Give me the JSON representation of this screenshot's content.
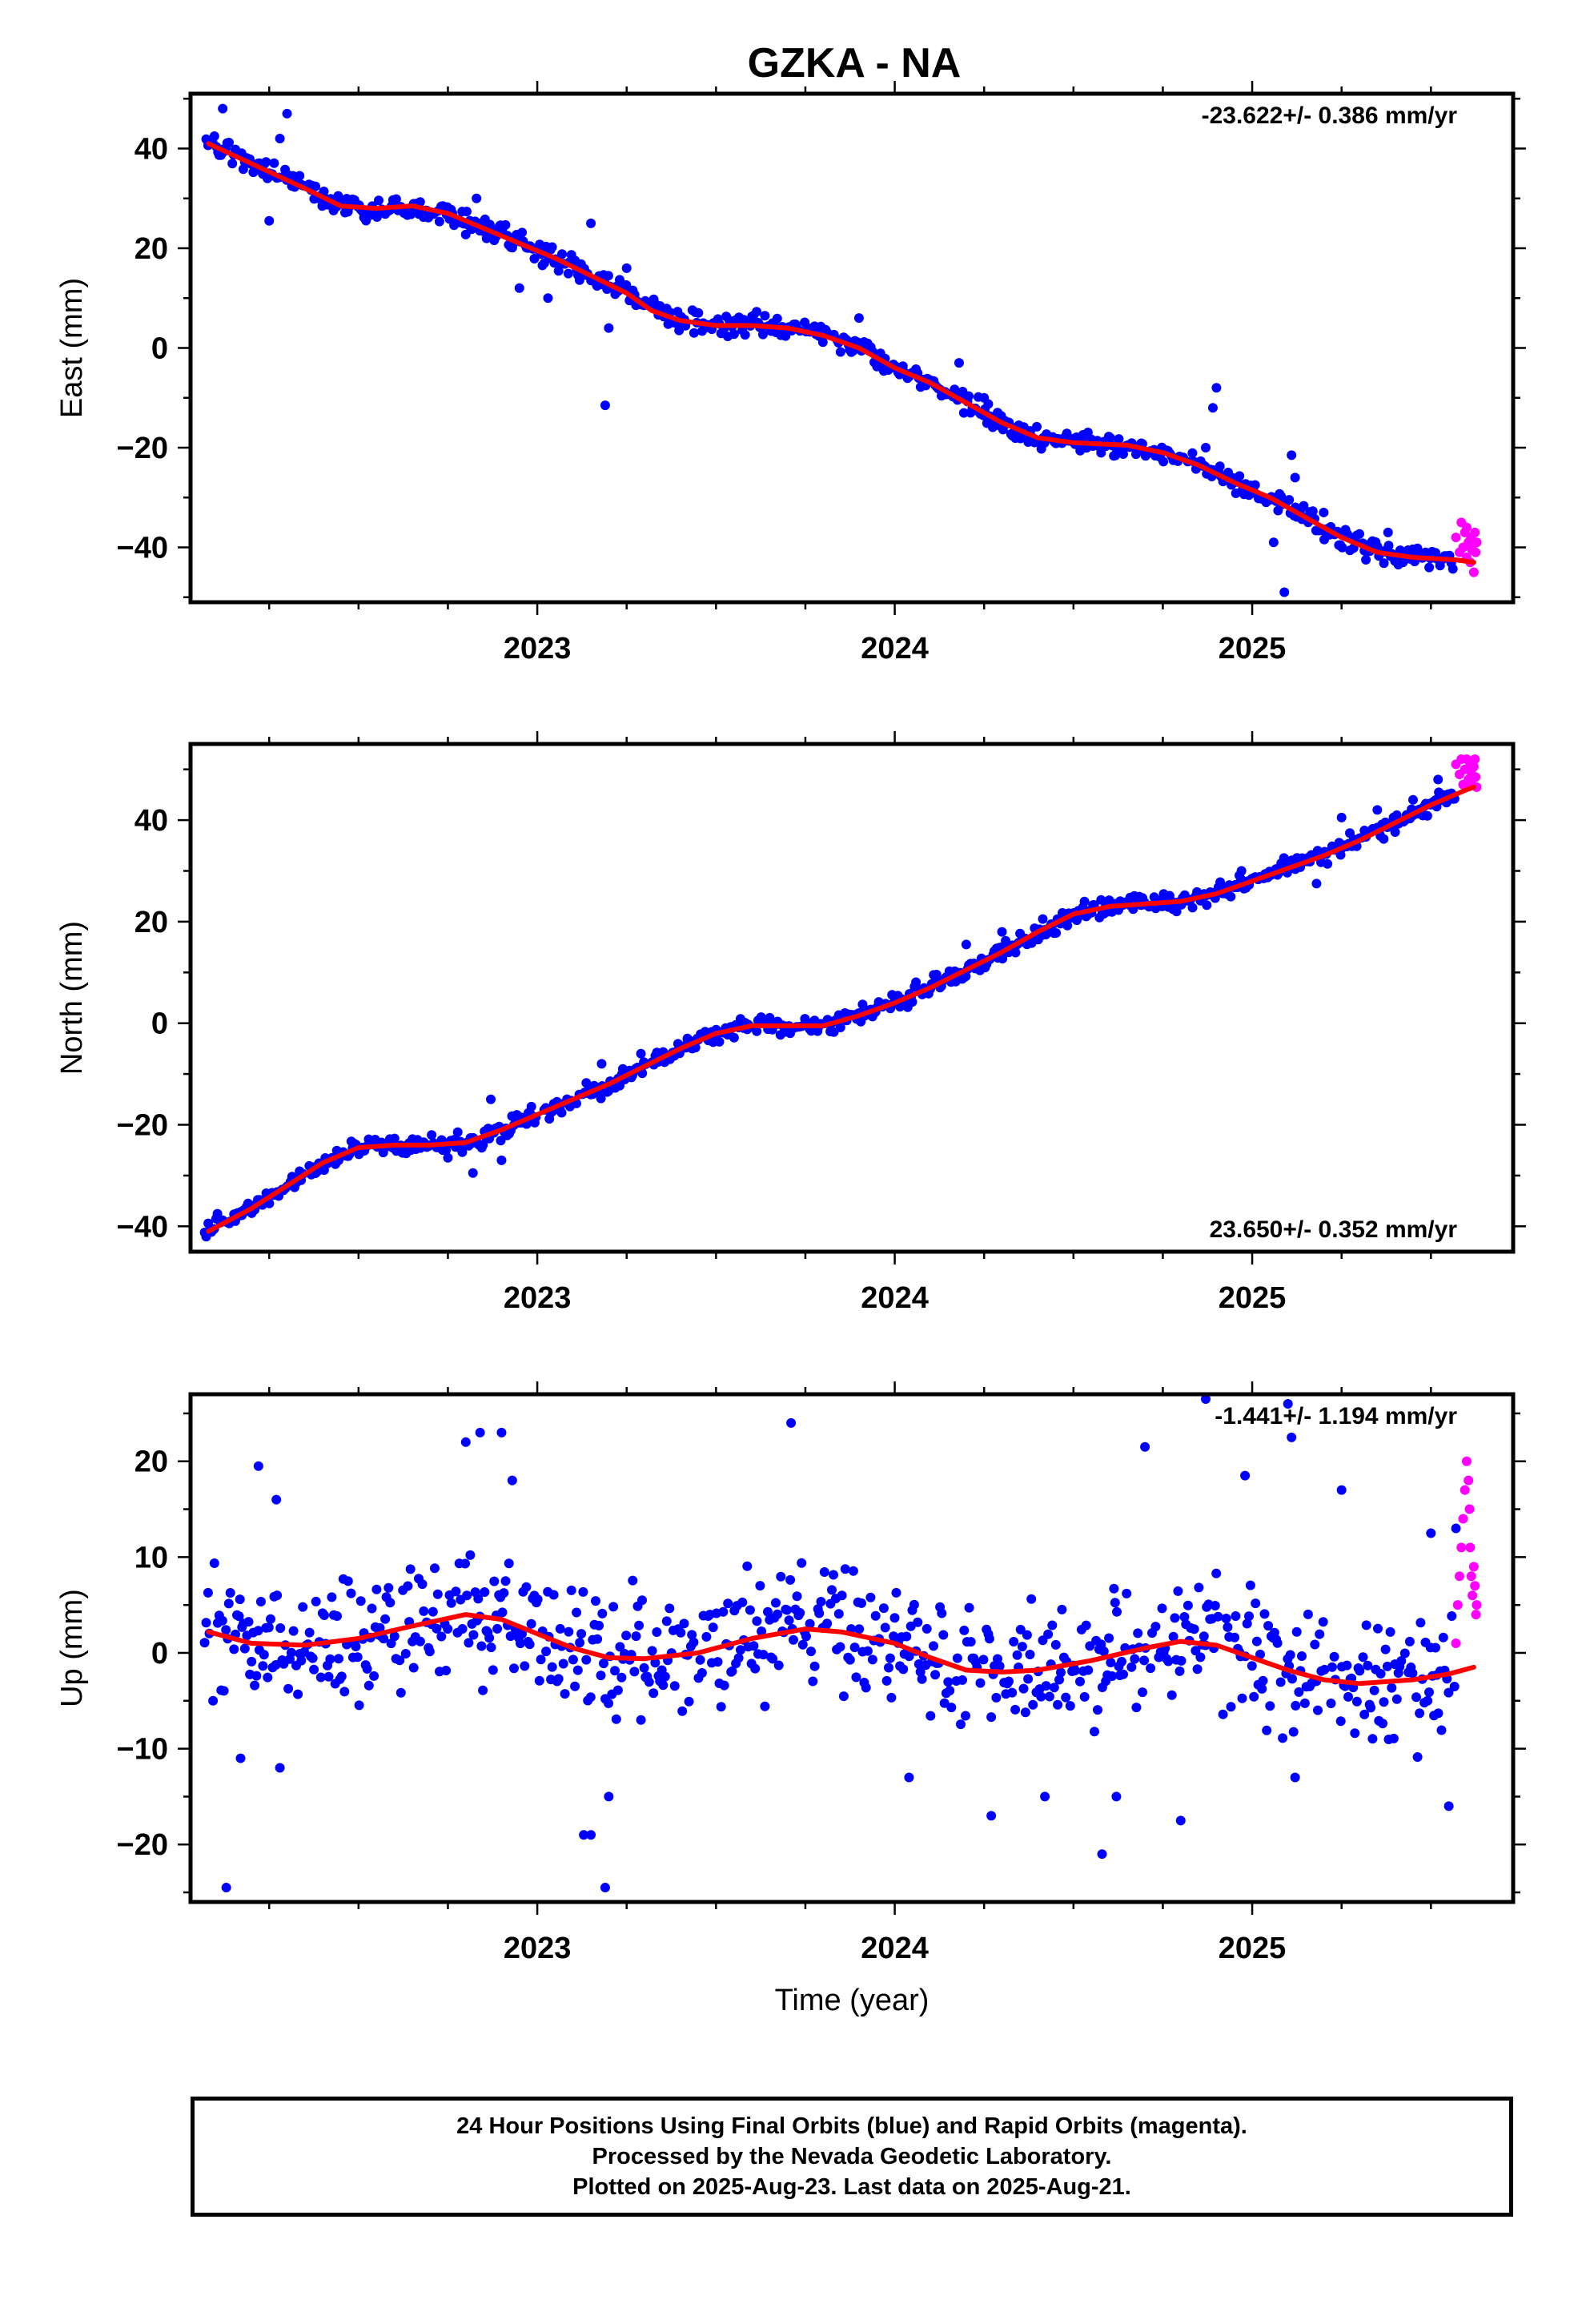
{
  "title": "GZKA - NA",
  "colors": {
    "final": "#0000ff",
    "rapid": "#ff00ff",
    "fit": "#ff0000",
    "frame": "#000000"
  },
  "chart_data": [
    {
      "type": "scatter",
      "ylabel": "East (mm)",
      "xlabel": "",
      "rate_text": "-23.622+/- 0.386 mm/yr",
      "rate_position": "top-right",
      "xlim": [
        2022.03,
        2025.73
      ],
      "ylim": [
        -51,
        51
      ],
      "xticks": [
        2023,
        2024,
        2025
      ],
      "xtick_labels": [
        "2023",
        "2024",
        "2025"
      ],
      "yticks": [
        -40,
        -20,
        0,
        20,
        40
      ],
      "ytick_labels": [
        "−40",
        "−20",
        "0",
        "20",
        "40"
      ],
      "grid": false,
      "series": [
        {
          "role": "final",
          "curve": [
            [
              2022.08,
              41
            ],
            [
              2022.2,
              37
            ],
            [
              2022.35,
              32
            ],
            [
              2022.45,
              28.5
            ],
            [
              2022.55,
              28
            ],
            [
              2022.65,
              28.5
            ],
            [
              2022.75,
              27
            ],
            [
              2022.85,
              24
            ],
            [
              2022.95,
              21
            ],
            [
              2023.05,
              18
            ],
            [
              2023.15,
              14.5
            ],
            [
              2023.25,
              11
            ],
            [
              2023.32,
              7.5
            ],
            [
              2023.4,
              5.5
            ],
            [
              2023.5,
              4.5
            ],
            [
              2023.6,
              4.5
            ],
            [
              2023.7,
              4
            ],
            [
              2023.8,
              2.5
            ],
            [
              2023.9,
              0
            ],
            [
              2024.0,
              -4
            ],
            [
              2024.1,
              -7
            ],
            [
              2024.2,
              -11
            ],
            [
              2024.3,
              -15
            ],
            [
              2024.4,
              -18
            ],
            [
              2024.5,
              -19
            ],
            [
              2024.65,
              -19.5
            ],
            [
              2024.75,
              -21
            ],
            [
              2024.85,
              -23.5
            ],
            [
              2024.95,
              -27
            ],
            [
              2025.05,
              -30
            ],
            [
              2025.15,
              -34
            ],
            [
              2025.25,
              -38
            ],
            [
              2025.35,
              -41
            ],
            [
              2025.45,
              -42
            ],
            [
              2025.57,
              -42.5
            ],
            [
              2025.62,
              -43
            ]
          ],
          "spread": 1.8,
          "step": 0.0045,
          "x_start": 2022.07,
          "x_end": 2025.57,
          "outliers": [
            [
              2022.12,
              48
            ],
            [
              2022.3,
              47
            ],
            [
              2022.28,
              42
            ],
            [
              2022.25,
              25.5
            ],
            [
              2022.83,
              30
            ],
            [
              2022.95,
              12
            ],
            [
              2023.03,
              10
            ],
            [
              2023.15,
              25
            ],
            [
              2023.19,
              -11.5
            ],
            [
              2023.25,
              16
            ],
            [
              2023.2,
              4
            ],
            [
              2023.9,
              6
            ],
            [
              2024.18,
              -3
            ],
            [
              2024.25,
              -10
            ],
            [
              2024.28,
              -14
            ],
            [
              2024.87,
              -20
            ],
            [
              2024.9,
              -8
            ],
            [
              2024.89,
              -12
            ],
            [
              2025.11,
              -21.5
            ],
            [
              2025.06,
              -39
            ],
            [
              2025.12,
              -26
            ],
            [
              2025.2,
              -33
            ],
            [
              2025.38,
              -37
            ],
            [
              2025.09,
              -49
            ]
          ]
        },
        {
          "role": "rapid",
          "points": [
            [
              2025.57,
              -38
            ],
            [
              2025.58,
              -41
            ],
            [
              2025.585,
              -35
            ],
            [
              2025.59,
              -40
            ],
            [
              2025.595,
              -37
            ],
            [
              2025.6,
              -42
            ],
            [
              2025.6,
              -36
            ],
            [
              2025.605,
              -39
            ],
            [
              2025.61,
              -43
            ],
            [
              2025.612,
              -38
            ],
            [
              2025.615,
              -40.5
            ],
            [
              2025.62,
              -45
            ],
            [
              2025.623,
              -37
            ],
            [
              2025.625,
              -41
            ],
            [
              2025.628,
              -39
            ]
          ]
        }
      ]
    },
    {
      "type": "scatter",
      "ylabel": "North (mm)",
      "xlabel": "",
      "rate_text": "23.650+/- 0.352 mm/yr",
      "rate_position": "bottom-right",
      "xlim": [
        2022.03,
        2025.73
      ],
      "ylim": [
        -45,
        55
      ],
      "xticks": [
        2023,
        2024,
        2025
      ],
      "xtick_labels": [
        "2023",
        "2024",
        "2025"
      ],
      "yticks": [
        -40,
        -20,
        0,
        20,
        40
      ],
      "ytick_labels": [
        "−40",
        "−20",
        "0",
        "20",
        "40"
      ],
      "grid": false,
      "series": [
        {
          "role": "final",
          "curve": [
            [
              2022.08,
              -41
            ],
            [
              2022.2,
              -36.5
            ],
            [
              2022.3,
              -32
            ],
            [
              2022.4,
              -27.5
            ],
            [
              2022.5,
              -24.5
            ],
            [
              2022.6,
              -24
            ],
            [
              2022.7,
              -24
            ],
            [
              2022.8,
              -23.5
            ],
            [
              2022.9,
              -21
            ],
            [
              2023.0,
              -18
            ],
            [
              2023.1,
              -15
            ],
            [
              2023.2,
              -12
            ],
            [
              2023.3,
              -8.5
            ],
            [
              2023.4,
              -5
            ],
            [
              2023.5,
              -2
            ],
            [
              2023.6,
              -0.5
            ],
            [
              2023.7,
              -0.5
            ],
            [
              2023.8,
              -0.5
            ],
            [
              2023.9,
              1.5
            ],
            [
              2024.0,
              4
            ],
            [
              2024.1,
              7
            ],
            [
              2024.2,
              10.5
            ],
            [
              2024.3,
              14
            ],
            [
              2024.4,
              18
            ],
            [
              2024.5,
              21.5
            ],
            [
              2024.6,
              23
            ],
            [
              2024.7,
              23.5
            ],
            [
              2024.8,
              24
            ],
            [
              2024.9,
              25.5
            ],
            [
              2025.0,
              28
            ],
            [
              2025.1,
              30.5
            ],
            [
              2025.2,
              33
            ],
            [
              2025.3,
              36
            ],
            [
              2025.4,
              39.5
            ],
            [
              2025.5,
              43
            ],
            [
              2025.6,
              46
            ],
            [
              2025.62,
              46.5
            ]
          ],
          "spread": 1.5,
          "step": 0.0045,
          "x_start": 2022.07,
          "x_end": 2025.57,
          "outliers": [
            [
              2022.75,
              -26.5
            ],
            [
              2022.82,
              -29.5
            ],
            [
              2022.9,
              -27
            ],
            [
              2022.87,
              -15
            ],
            [
              2023.18,
              -8
            ],
            [
              2023.29,
              -6
            ],
            [
              2023.42,
              -3
            ],
            [
              2024.2,
              15.5
            ],
            [
              2024.3,
              18
            ],
            [
              2024.97,
              30
            ],
            [
              2025.18,
              27.5
            ],
            [
              2025.25,
              40.5
            ],
            [
              2025.35,
              42
            ],
            [
              2025.45,
              44
            ],
            [
              2025.52,
              48
            ]
          ]
        },
        {
          "role": "rapid",
          "points": [
            [
              2025.57,
              51
            ],
            [
              2025.58,
              49
            ],
            [
              2025.585,
              52
            ],
            [
              2025.59,
              47
            ],
            [
              2025.595,
              50
            ],
            [
              2025.6,
              52
            ],
            [
              2025.605,
              48
            ],
            [
              2025.61,
              51
            ],
            [
              2025.612,
              49.5
            ],
            [
              2025.615,
              47
            ],
            [
              2025.62,
              50.5
            ],
            [
              2025.623,
              52
            ],
            [
              2025.625,
              48.5
            ],
            [
              2025.628,
              46.5
            ]
          ]
        }
      ]
    },
    {
      "type": "scatter",
      "ylabel": "Up (mm)",
      "xlabel": "Time (year)",
      "rate_text": "-1.441+/- 1.194 mm/yr",
      "rate_position": "top-right",
      "xlim": [
        2022.03,
        2025.73
      ],
      "ylim": [
        -26,
        27
      ],
      "xticks": [
        2023,
        2024,
        2025
      ],
      "xtick_labels": [
        "2023",
        "2024",
        "2025"
      ],
      "yticks": [
        -20,
        -10,
        0,
        10,
        20
      ],
      "ytick_labels": [
        "−20",
        "−10",
        "0",
        "10",
        "20"
      ],
      "grid": false,
      "series": [
        {
          "role": "final",
          "curve": [
            [
              2022.08,
              2.2
            ],
            [
              2022.2,
              1
            ],
            [
              2022.35,
              0.8
            ],
            [
              2022.5,
              1.5
            ],
            [
              2022.65,
              2.8
            ],
            [
              2022.8,
              4
            ],
            [
              2022.9,
              3.5
            ],
            [
              2023.0,
              2
            ],
            [
              2023.1,
              0.5
            ],
            [
              2023.2,
              -0.5
            ],
            [
              2023.3,
              -0.6
            ],
            [
              2023.45,
              0
            ],
            [
              2023.6,
              1.5
            ],
            [
              2023.75,
              2.5
            ],
            [
              2023.85,
              2.2
            ],
            [
              2024.0,
              1
            ],
            [
              2024.1,
              -0.5
            ],
            [
              2024.2,
              -1.8
            ],
            [
              2024.3,
              -2
            ],
            [
              2024.4,
              -1.8
            ],
            [
              2024.55,
              -0.8
            ],
            [
              2024.7,
              0.5
            ],
            [
              2024.8,
              1.2
            ],
            [
              2024.9,
              0.8
            ],
            [
              2025.0,
              -0.5
            ],
            [
              2025.1,
              -1.8
            ],
            [
              2025.2,
              -2.8
            ],
            [
              2025.3,
              -3.2
            ],
            [
              2025.45,
              -2.8
            ],
            [
              2025.55,
              -2.2
            ],
            [
              2025.62,
              -1.5
            ]
          ],
          "spread": 5.2,
          "step": 0.0045,
          "x_start": 2022.07,
          "x_end": 2025.57,
          "outliers": [
            [
              2022.13,
              -24.5
            ],
            [
              2022.17,
              -11
            ],
            [
              2022.28,
              -12
            ],
            [
              2022.22,
              19.5
            ],
            [
              2022.27,
              16
            ],
            [
              2022.8,
              22
            ],
            [
              2022.84,
              23
            ],
            [
              2022.9,
              23
            ],
            [
              2022.93,
              18
            ],
            [
              2023.13,
              -19
            ],
            [
              2023.15,
              -19
            ],
            [
              2023.19,
              -24.5
            ],
            [
              2023.2,
              -15
            ],
            [
              2023.71,
              24
            ],
            [
              2024.04,
              -13
            ],
            [
              2024.27,
              -17
            ],
            [
              2024.42,
              -15
            ],
            [
              2024.58,
              -21
            ],
            [
              2024.62,
              -15
            ],
            [
              2024.7,
              21.5
            ],
            [
              2024.8,
              -17.5
            ],
            [
              2024.87,
              26.5
            ],
            [
              2024.98,
              18.5
            ],
            [
              2025.1,
              26
            ],
            [
              2025.11,
              22.5
            ],
            [
              2025.12,
              -13
            ],
            [
              2025.25,
              17
            ],
            [
              2025.5,
              12.5
            ],
            [
              2025.55,
              -16
            ],
            [
              2025.57,
              13
            ]
          ]
        },
        {
          "role": "rapid",
          "points": [
            [
              2025.57,
              1
            ],
            [
              2025.575,
              5
            ],
            [
              2025.58,
              8
            ],
            [
              2025.585,
              11
            ],
            [
              2025.59,
              14
            ],
            [
              2025.595,
              17
            ],
            [
              2025.6,
              20
            ],
            [
              2025.605,
              18
            ],
            [
              2025.608,
              15
            ],
            [
              2025.61,
              11
            ],
            [
              2025.613,
              8
            ],
            [
              2025.616,
              6
            ],
            [
              2025.62,
              9
            ],
            [
              2025.623,
              7
            ],
            [
              2025.626,
              4
            ],
            [
              2025.628,
              5
            ]
          ]
        }
      ]
    }
  ],
  "footer": {
    "line1": "24 Hour Positions Using Final Orbits (blue) and Rapid Orbits (magenta).",
    "line2": "Processed by the Nevada Geodetic Laboratory.",
    "line3": "Plotted on 2025-Aug-23. Last data on 2025-Aug-21."
  }
}
